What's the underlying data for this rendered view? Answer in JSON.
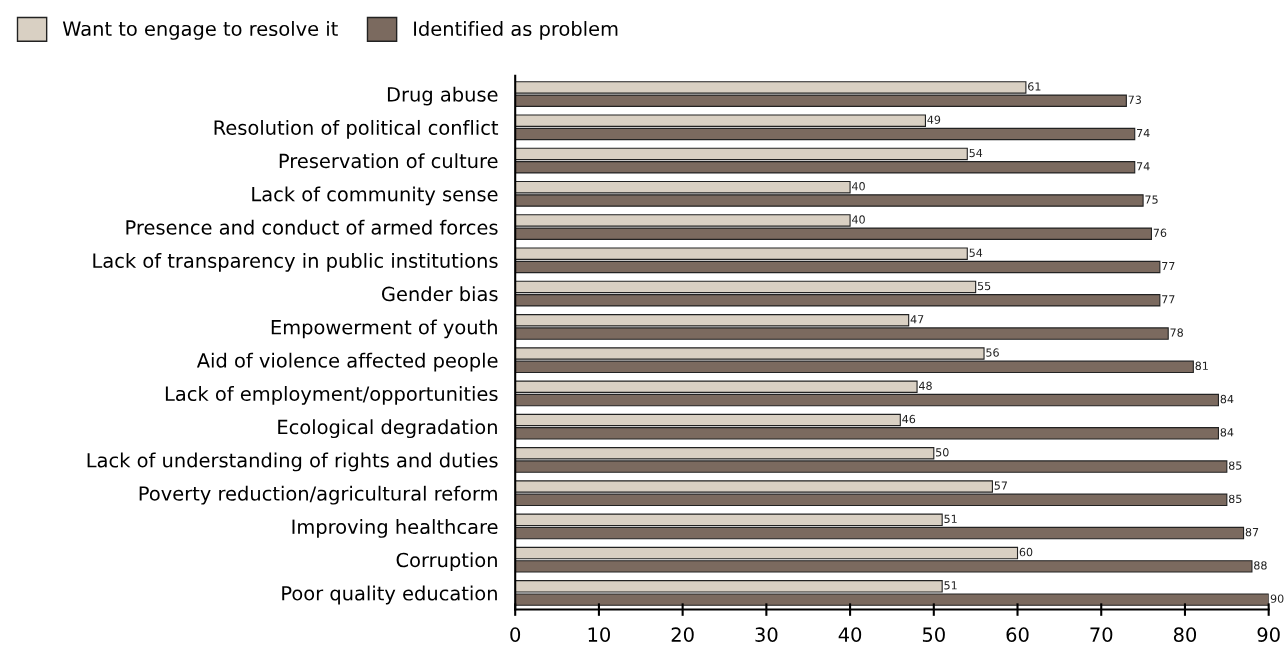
{
  "chart_data": {
    "type": "bar",
    "orientation": "horizontal",
    "categories": [
      "Drug abuse",
      "Resolution of political conflict",
      "Preservation of culture",
      "Lack of community sense",
      "Presence and conduct of armed forces",
      "Lack of transparency in public institutions",
      "Gender bias",
      "Empowerment of youth",
      "Aid of violence affected people",
      "Lack of employment/opportunities",
      "Ecological degradation",
      "Lack of understanding of rights and duties",
      "Poverty reduction/agricultural reform",
      "Improving healthcare",
      "Corruption",
      "Poor quality education"
    ],
    "series": [
      {
        "name": "Want to engage to resolve it",
        "color": "#d9d0c3",
        "values": [
          61,
          49,
          54,
          40,
          40,
          54,
          55,
          47,
          56,
          48,
          46,
          50,
          57,
          51,
          60,
          51
        ]
      },
      {
        "name": "Identified as problem",
        "color": "#7b6a5f",
        "values": [
          73,
          74,
          74,
          75,
          76,
          77,
          77,
          78,
          81,
          84,
          84,
          85,
          85,
          87,
          88,
          90
        ]
      }
    ],
    "xlim": [
      0,
      90
    ],
    "xticks": [
      0,
      10,
      20,
      30,
      40,
      50,
      60,
      70,
      80,
      90
    ],
    "data_labels": true,
    "grid": false,
    "legend": "top left"
  }
}
